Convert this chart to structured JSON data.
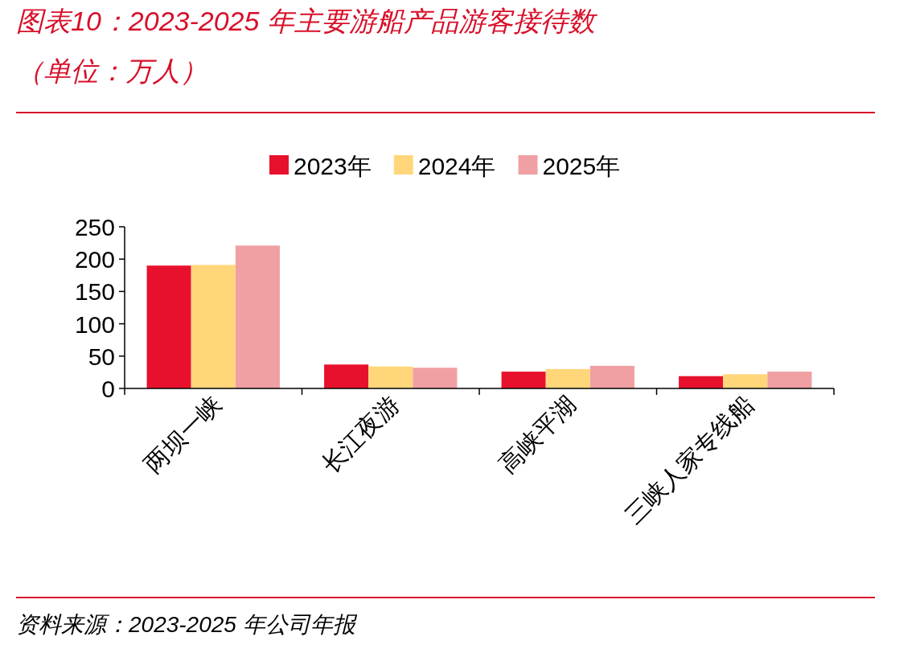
{
  "chart_data": {
    "type": "bar",
    "title": "图表10：2023-2025 年主要游船产品游客接待数（单位：万人）",
    "annotations": [
      "资料来源：2023-2025 年公司年报"
    ],
    "categories": [
      "两坝一峡",
      "长江夜游",
      "高峡平湖",
      "三峡人家专线船"
    ],
    "series": [
      {
        "name": "2023年",
        "color": "#e8112d",
        "values": [
          190,
          37,
          26,
          19
        ]
      },
      {
        "name": "2024年",
        "color": "#ffd77a",
        "values": [
          191,
          34,
          30,
          22
        ]
      },
      {
        "name": "2025年",
        "color": "#f0a0a3",
        "values": [
          221,
          32,
          35,
          26
        ]
      }
    ],
    "ylim": [
      0,
      250
    ],
    "yticks": [
      0,
      50,
      100,
      150,
      200,
      250
    ],
    "legend": "top",
    "grid": false
  }
}
